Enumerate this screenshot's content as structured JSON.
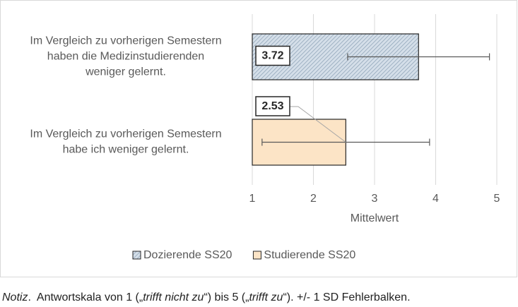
{
  "chart_data": {
    "type": "bar",
    "orientation": "horizontal",
    "categories": [
      [
        "Im Vergleich zu vorherigen Semestern",
        "haben die Medizinstudierenden",
        "weniger gelernt."
      ],
      [
        "Im Vergleich zu vorherigen Semestern",
        "habe ich weniger gelernt."
      ]
    ],
    "series": [
      {
        "name": "Dozierende SS20",
        "color": "#d5dfe9",
        "hatch": "#8ea3b7",
        "values": [
          3.72,
          null
        ],
        "errors": [
          1.16,
          null
        ]
      },
      {
        "name": "Studierende SS20",
        "color": "#fce4c6",
        "values": [
          null,
          2.53
        ],
        "errors": [
          null,
          1.37
        ]
      }
    ],
    "xlabel": "Mittelwert",
    "xlim": [
      1,
      5
    ],
    "xticks": [
      1,
      2,
      3,
      4,
      5
    ],
    "grid": true,
    "legend": "bottom"
  },
  "note": [
    "Notiz",
    ".  Antwortskala von 1 („",
    "trifft nicht zu",
    "“) bis 5 („",
    "trifft zu",
    "“). +/- 1 SD Fehlerbalken."
  ]
}
